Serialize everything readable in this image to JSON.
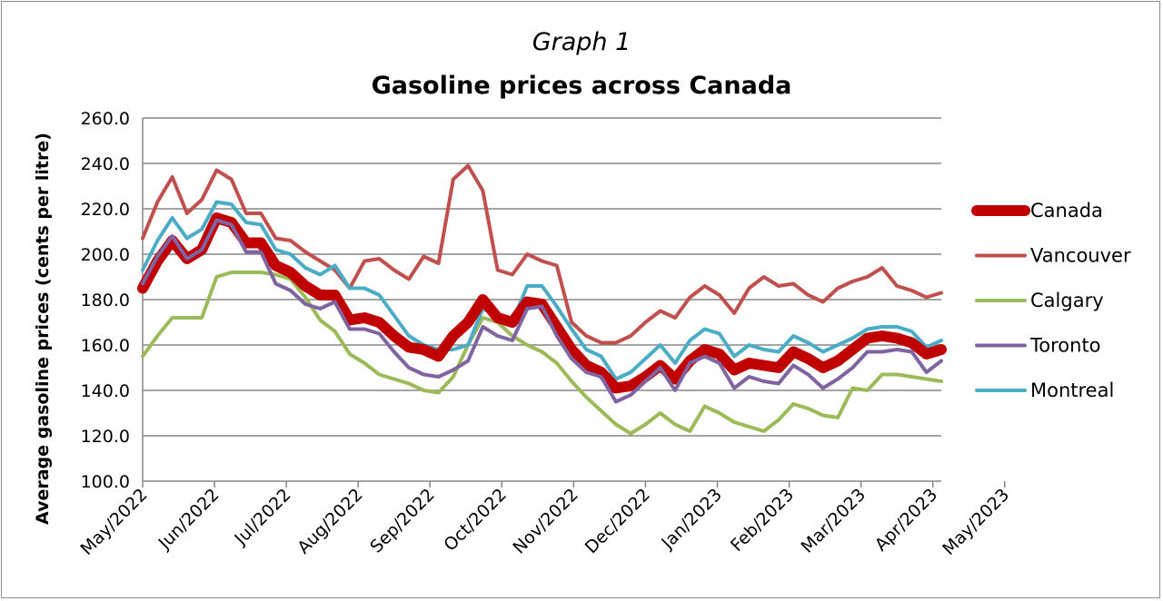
{
  "chart_data": {
    "type": "line",
    "title": "Graph 1",
    "subtitle": "Gasoline prices across Canada",
    "xlabel": "",
    "ylabel": "Average gasoline prices (cents per litre)",
    "ylim": [
      100,
      260
    ],
    "y_ticks": [
      "100.0",
      "120.0",
      "140.0",
      "160.0",
      "180.0",
      "200.0",
      "220.0",
      "240.0",
      "260.0"
    ],
    "x_ticks": [
      "May/2022",
      "Jun/2022",
      "Jul/2022",
      "Aug/2022",
      "Sep/2022",
      "Oct/2022",
      "Nov/2022",
      "Dec/2022",
      "Jan/2023",
      "Feb/2023",
      "Mar/2023",
      "Apr/2023",
      "May/2023"
    ],
    "grid": "horizontal",
    "legend": "right",
    "points_per_month": 4.857,
    "series": [
      {
        "name": "Canada",
        "color": "#c00000",
        "width": 12,
        "values": [
          185,
          197,
          206,
          198,
          202,
          216,
          214,
          205,
          205,
          195,
          192,
          186,
          182,
          182,
          171,
          172,
          170,
          164,
          159,
          158,
          155,
          164,
          170,
          180,
          172,
          170,
          179,
          178,
          168,
          158,
          151,
          148,
          141,
          142,
          146,
          151,
          145,
          153,
          158,
          156,
          149,
          152,
          151,
          150,
          157,
          154,
          150,
          153,
          158,
          163,
          164,
          163,
          161,
          156,
          158
        ]
      },
      {
        "name": "Vancouver",
        "color": "#c0504d",
        "width": 4,
        "values": [
          207,
          223,
          234,
          218,
          224,
          237,
          233,
          218,
          218,
          207,
          206,
          201,
          197,
          193,
          185,
          197,
          198,
          193,
          189,
          199,
          196,
          233,
          239,
          228,
          193,
          191,
          200,
          197,
          195,
          170,
          164,
          161,
          161,
          164,
          170,
          175,
          172,
          181,
          186,
          182,
          174,
          185,
          190,
          186,
          187,
          182,
          179,
          185,
          188,
          190,
          194,
          186,
          184,
          181,
          183
        ]
      },
      {
        "name": "Calgary",
        "color": "#9bbb59",
        "width": 4,
        "values": [
          155,
          164,
          172,
          172,
          172,
          190,
          192,
          192,
          192,
          191,
          189,
          181,
          171,
          166,
          156,
          152,
          147,
          145,
          143,
          140,
          139,
          146,
          160,
          172,
          170,
          164,
          160,
          157,
          152,
          144,
          137,
          131,
          125,
          121,
          125,
          130,
          125,
          122,
          133,
          130,
          126,
          124,
          122,
          127,
          134,
          132,
          129,
          128,
          141,
          140,
          147,
          147,
          146,
          145,
          144
        ]
      },
      {
        "name": "Toronto",
        "color": "#8064a2",
        "width": 4,
        "values": [
          187,
          199,
          208,
          198,
          202,
          215,
          213,
          201,
          201,
          187,
          184,
          178,
          176,
          179,
          167,
          167,
          165,
          157,
          150,
          147,
          146,
          149,
          153,
          168,
          164,
          162,
          176,
          177,
          164,
          154,
          148,
          146,
          135,
          138,
          144,
          150,
          140,
          152,
          155,
          152,
          141,
          146,
          144,
          143,
          151,
          147,
          141,
          145,
          150,
          157,
          157,
          158,
          157,
          148,
          153
        ]
      },
      {
        "name": "Montreal",
        "color": "#4bacc6",
        "width": 4,
        "values": [
          193,
          206,
          216,
          207,
          211,
          223,
          222,
          214,
          213,
          202,
          200,
          194,
          191,
          195,
          185,
          185,
          182,
          173,
          164,
          160,
          158,
          158,
          160,
          176,
          173,
          170,
          186,
          186,
          177,
          167,
          158,
          155,
          145,
          148,
          154,
          160,
          152,
          162,
          167,
          165,
          155,
          160,
          158,
          157,
          164,
          161,
          157,
          160,
          163,
          167,
          168,
          168,
          166,
          159,
          162
        ]
      }
    ]
  }
}
